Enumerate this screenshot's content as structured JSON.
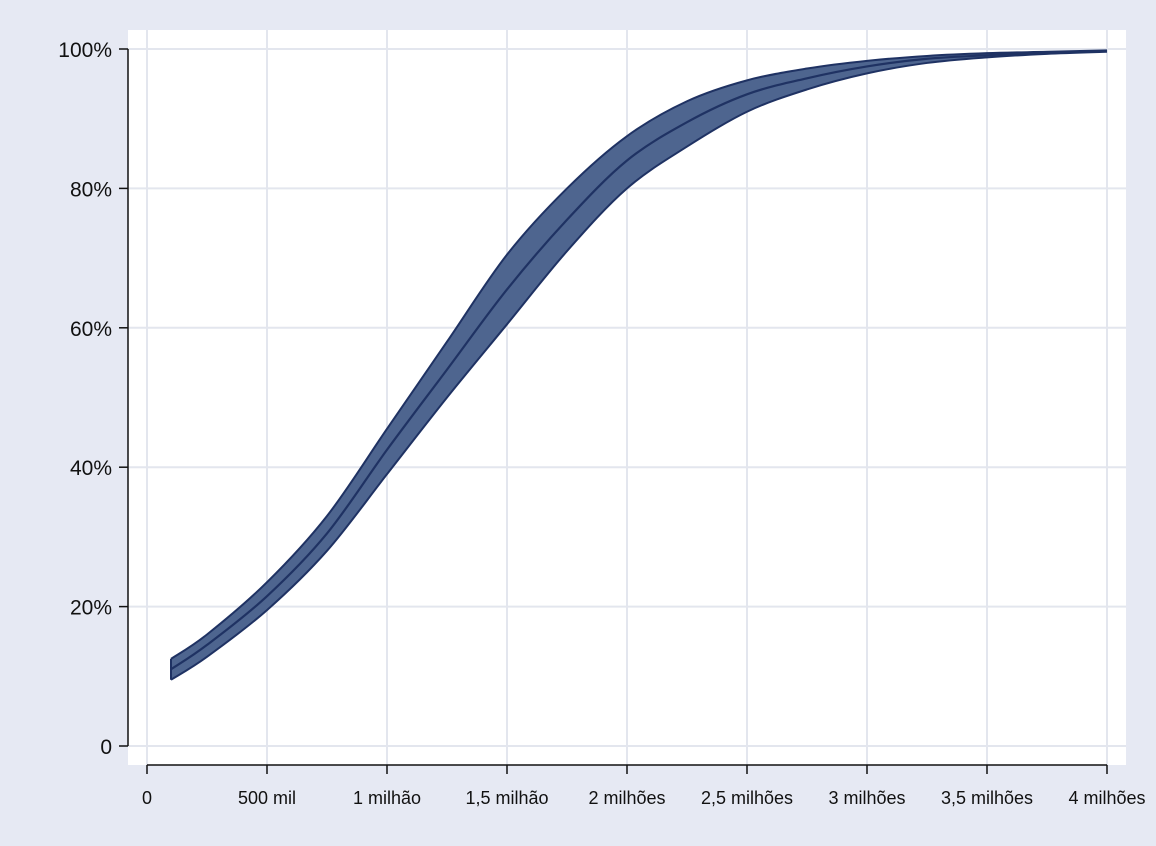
{
  "chart_data": {
    "type": "area",
    "title": "",
    "xlabel": "",
    "ylabel": "",
    "xlim": [
      0,
      4000000
    ],
    "ylim": [
      0,
      1
    ],
    "grid": true,
    "legend": "none",
    "x_ticks": [
      {
        "value": 0,
        "label": "0"
      },
      {
        "value": 500000,
        "label": "500 mil"
      },
      {
        "value": 1000000,
        "label": "1 milhão"
      },
      {
        "value": 1500000,
        "label": "1,5 milhão"
      },
      {
        "value": 2000000,
        "label": "2 milhões"
      },
      {
        "value": 2500000,
        "label": "2,5 milhões"
      },
      {
        "value": 3000000,
        "label": "3 milhões"
      },
      {
        "value": 3500000,
        "label": "3,5 milhões"
      },
      {
        "value": 4000000,
        "label": "4 milhões"
      }
    ],
    "y_ticks": [
      {
        "value": 0,
        "label": "0"
      },
      {
        "value": 0.2,
        "label": "20%"
      },
      {
        "value": 0.4,
        "label": "40%"
      },
      {
        "value": 0.6,
        "label": "60%"
      },
      {
        "value": 0.8,
        "label": "80%"
      },
      {
        "value": 1.0,
        "label": "100%"
      }
    ],
    "x": [
      100000,
      250000,
      500000,
      750000,
      1000000,
      1250000,
      1500000,
      1750000,
      2000000,
      2250000,
      2500000,
      2750000,
      3000000,
      3250000,
      3500000,
      3750000,
      4000000
    ],
    "series": [
      {
        "role": "point-estimate",
        "values": [
          0.11,
          0.145,
          0.215,
          0.305,
          0.425,
          0.54,
          0.655,
          0.755,
          0.84,
          0.895,
          0.935,
          0.958,
          0.975,
          0.986,
          0.991,
          0.995,
          0.997
        ]
      },
      {
        "role": "upper-bound",
        "values": [
          0.125,
          0.16,
          0.235,
          0.33,
          0.455,
          0.58,
          0.705,
          0.8,
          0.875,
          0.925,
          0.955,
          0.972,
          0.983,
          0.99,
          0.994,
          0.996,
          0.998
        ]
      },
      {
        "role": "lower-bound",
        "values": [
          0.095,
          0.128,
          0.195,
          0.28,
          0.39,
          0.5,
          0.605,
          0.71,
          0.8,
          0.86,
          0.91,
          0.942,
          0.965,
          0.98,
          0.988,
          0.993,
          0.996
        ]
      }
    ],
    "colors": {
      "band_fill": "#4e658f",
      "line": "#1f3263",
      "plot_background": "#ffffff",
      "outer_background": "#e6e9f3",
      "grid": "#e3e6ee",
      "axis": "#111111"
    }
  }
}
